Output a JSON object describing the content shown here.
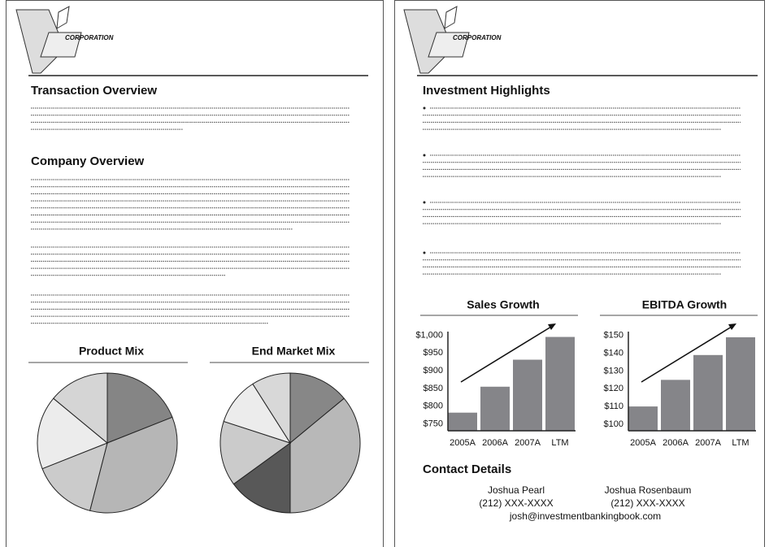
{
  "document": {
    "left_page": {
      "logo": "CORPORATION",
      "headings": [
        "Transaction Overview",
        "Company Overview"
      ]
    },
    "right_page": {
      "logo": "CORPORATION",
      "heading": "Investment Highlights",
      "contact": {
        "heading": "Contact Details",
        "names": [
          "Joshua Pearl",
          "Joshua Rosenbaum"
        ],
        "phones": [
          "(212) XXX-XXXX",
          "(212) XXX-XXXX"
        ],
        "email": "josh@investmentbankingbook.com"
      }
    }
  },
  "chart_data": [
    {
      "type": "pie",
      "title": "Product Mix",
      "values": [
        19,
        35,
        15,
        17,
        14
      ],
      "colors": [
        "#858585",
        "#b6b6b6",
        "#cbcbcb",
        "#ececec",
        "#d5d5d5"
      ]
    },
    {
      "type": "pie",
      "title": "End Market Mix",
      "values": [
        14,
        36,
        15,
        15,
        11,
        9
      ],
      "colors": [
        "#878787",
        "#b8b8b8",
        "#585858",
        "#cbcbcb",
        "#ececec",
        "#d8d8d8"
      ]
    },
    {
      "type": "bar",
      "title": "Sales Growth",
      "categories": [
        "2005A",
        "2006A",
        "2007A",
        "LTM"
      ],
      "values": [
        782,
        855,
        931,
        995
      ],
      "color": "#858589",
      "ylim": [
        731,
        1010
      ],
      "yticks": [
        {
          "value": 750,
          "label": "$750"
        },
        {
          "value": 800,
          "label": "$800"
        },
        {
          "value": 850,
          "label": "$850"
        },
        {
          "value": 900,
          "label": "$900"
        },
        {
          "value": 950,
          "label": "$950"
        },
        {
          "value": 1000,
          "label": "$1,000"
        }
      ],
      "grid": false
    },
    {
      "type": "bar",
      "title": "EBITDA Growth",
      "categories": [
        "2005A",
        "2006A",
        "2007A",
        "LTM"
      ],
      "values": [
        110,
        125,
        139,
        149
      ],
      "color": "#858589",
      "ylim": [
        96.3,
        152.2
      ],
      "yticks": [
        {
          "value": 100,
          "label": "$100"
        },
        {
          "value": 110,
          "label": "$110"
        },
        {
          "value": 120,
          "label": "$120"
        },
        {
          "value": 130,
          "label": "$130"
        },
        {
          "value": 140,
          "label": "$140"
        },
        {
          "value": 150,
          "label": "$150"
        }
      ],
      "grid": false
    }
  ]
}
